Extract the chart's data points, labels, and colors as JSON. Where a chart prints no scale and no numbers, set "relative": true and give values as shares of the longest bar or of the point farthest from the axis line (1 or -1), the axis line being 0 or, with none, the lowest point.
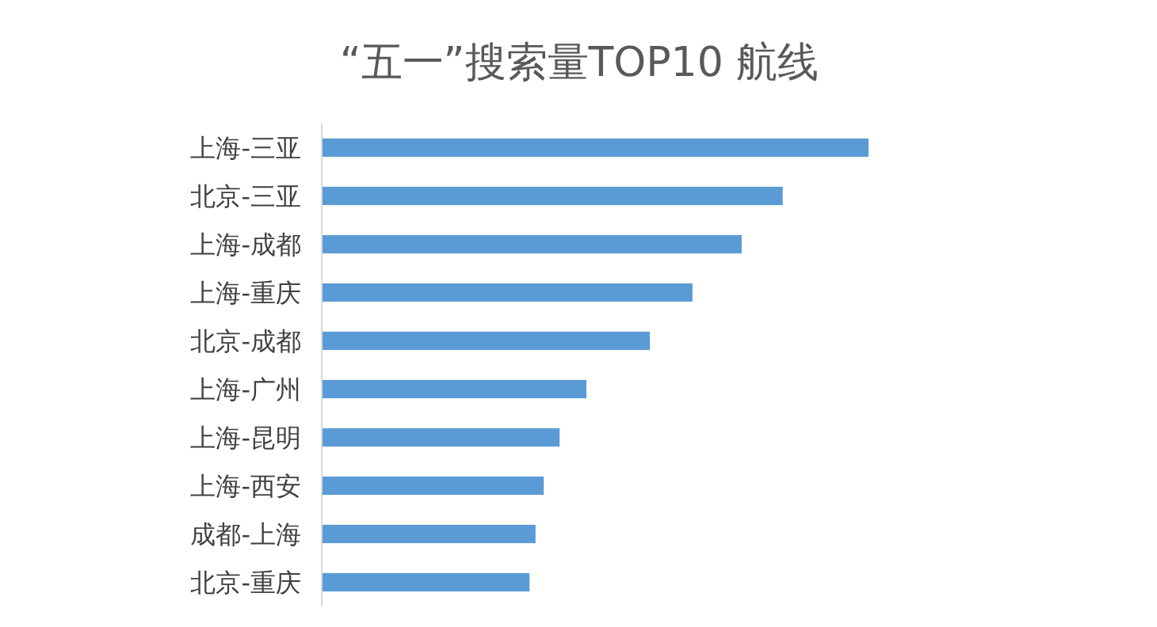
{
  "chart_data": {
    "type": "bar",
    "orientation": "horizontal",
    "relative": true,
    "title": "“五一”搜索量TOP10 航线",
    "categories": [
      "上海-三亚",
      "北京-三亚",
      "上海-成都",
      "上海-重庆",
      "北京-成都",
      "上海-广州",
      "上海-昆明",
      "上海-西安",
      "成都-上海",
      "北京-重庆"
    ],
    "values": [
      1,
      0.843,
      0.768,
      0.678,
      0.6,
      0.484,
      0.435,
      0.406,
      0.391,
      0.38
    ],
    "color": "#5b9bd5"
  }
}
